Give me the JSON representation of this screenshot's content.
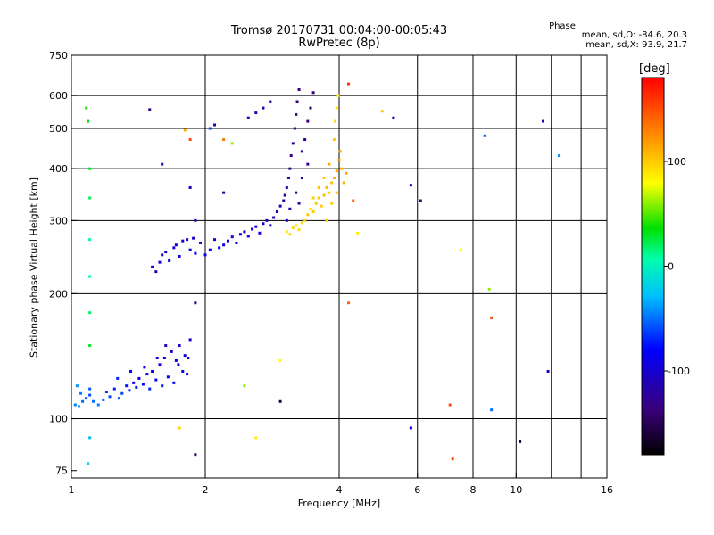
{
  "chart_data": {
    "type": "scatter",
    "title": "Tromsø 20170731 00:04:00-00:05:43",
    "subtitle": "RwPretec (8p)",
    "xlabel": "Frequency [MHz]",
    "ylabel": "Stationary phase Virtual Height [km]",
    "xscale": "log",
    "yscale": "log",
    "xlim": [
      1,
      16
    ],
    "ylim": [
      72,
      750
    ],
    "x_ticks": [
      1,
      2,
      4,
      6,
      8,
      10,
      16
    ],
    "x_tick_labels": [
      "1",
      "2",
      "4",
      "6",
      "8",
      "10",
      "16"
    ],
    "x_grid": [
      2,
      4,
      6,
      8,
      10,
      12,
      14
    ],
    "y_ticks": [
      75,
      100,
      200,
      300,
      400,
      500,
      600,
      750
    ],
    "y_tick_labels": [
      "75",
      "100",
      "200",
      "300",
      "400",
      "500",
      "600",
      "750"
    ],
    "y_grid": [
      100,
      200,
      300,
      400,
      500,
      600
    ],
    "grid": true,
    "phase_label": "Phase",
    "stats_o": "mean, sd,O: -84.6, 20.3",
    "stats_x": "mean, sd,X:  93.9, 21.7",
    "colorbar": {
      "title": "[deg]",
      "range": [
        -180,
        180
      ],
      "ticks": [
        100,
        0,
        -100
      ],
      "tick_labels": [
        "100",
        "0",
        "-100"
      ],
      "colormap": "rainbow (black-purple-blue-cyan-green-yellow-orange-red)"
    },
    "series": [
      {
        "name": "O-mode E-layer trace",
        "points": [
          [
            1.02,
            108,
            -45
          ],
          [
            1.04,
            107,
            -40
          ],
          [
            1.06,
            110,
            -50
          ],
          [
            1.08,
            112,
            -55
          ],
          [
            1.1,
            114,
            -60
          ],
          [
            1.12,
            110,
            -50
          ],
          [
            1.15,
            108,
            -45
          ],
          [
            1.18,
            111,
            -55
          ],
          [
            1.2,
            116,
            -65
          ],
          [
            1.22,
            113,
            -60
          ],
          [
            1.25,
            118,
            -70
          ],
          [
            1.28,
            112,
            -55
          ],
          [
            1.3,
            115,
            -60
          ],
          [
            1.33,
            120,
            -75
          ],
          [
            1.35,
            117,
            -70
          ],
          [
            1.38,
            122,
            -80
          ],
          [
            1.4,
            119,
            -72
          ],
          [
            1.42,
            125,
            -85
          ],
          [
            1.45,
            121,
            -78
          ],
          [
            1.48,
            128,
            -88
          ],
          [
            1.5,
            118,
            -70
          ],
          [
            1.52,
            130,
            -90
          ],
          [
            1.55,
            124,
            -82
          ],
          [
            1.58,
            135,
            -95
          ],
          [
            1.6,
            120,
            -75
          ],
          [
            1.62,
            140,
            -100
          ],
          [
            1.65,
            126,
            -85
          ],
          [
            1.68,
            145,
            -105
          ],
          [
            1.7,
            122,
            -80
          ],
          [
            1.72,
            138,
            -98
          ],
          [
            1.75,
            150,
            -100
          ],
          [
            1.78,
            130,
            -90
          ],
          [
            1.8,
            142,
            -95
          ],
          [
            1.82,
            128,
            -88
          ],
          [
            1.85,
            155,
            -100
          ],
          [
            1.03,
            120,
            -40
          ],
          [
            1.05,
            115,
            -45
          ],
          [
            1.27,
            125,
            -70
          ],
          [
            1.36,
            130,
            -80
          ],
          [
            1.46,
            133,
            -85
          ],
          [
            1.56,
            140,
            -95
          ],
          [
            1.63,
            150,
            -105
          ],
          [
            1.74,
            135,
            -92
          ],
          [
            1.83,
            140,
            -98
          ],
          [
            1.1,
            118,
            -55
          ]
        ]
      },
      {
        "name": "O-mode F-layer trace",
        "points": [
          [
            1.52,
            232,
            -95
          ],
          [
            1.55,
            226,
            -100
          ],
          [
            1.58,
            238,
            -90
          ],
          [
            1.6,
            248,
            -95
          ],
          [
            1.63,
            252,
            -100
          ],
          [
            1.66,
            240,
            -95
          ],
          [
            1.7,
            258,
            -100
          ],
          [
            1.72,
            262,
            -95
          ],
          [
            1.75,
            246,
            -90
          ],
          [
            1.78,
            268,
            -100
          ],
          [
            1.82,
            270,
            -98
          ],
          [
            1.85,
            255,
            -92
          ],
          [
            1.88,
            272,
            -100
          ],
          [
            1.9,
            250,
            -90
          ],
          [
            1.95,
            265,
            -95
          ],
          [
            2.0,
            248,
            -85
          ],
          [
            2.05,
            255,
            -88
          ],
          [
            2.1,
            270,
            -95
          ],
          [
            2.15,
            258,
            -90
          ],
          [
            2.2,
            262,
            -92
          ],
          [
            2.25,
            268,
            -95
          ],
          [
            2.3,
            274,
            -98
          ],
          [
            2.35,
            265,
            -90
          ],
          [
            2.4,
            278,
            -100
          ],
          [
            2.45,
            282,
            -102
          ],
          [
            2.5,
            275,
            -95
          ],
          [
            2.55,
            286,
            -100
          ],
          [
            2.6,
            290,
            -102
          ],
          [
            2.65,
            280,
            -96
          ],
          [
            2.7,
            295,
            -105
          ],
          [
            2.75,
            300,
            -108
          ],
          [
            2.8,
            292,
            -100
          ],
          [
            2.85,
            305,
            -110
          ],
          [
            2.9,
            315,
            -112
          ],
          [
            2.95,
            325,
            -115
          ],
          [
            3.0,
            335,
            -118
          ],
          [
            3.02,
            345,
            -120
          ],
          [
            3.05,
            360,
            -122
          ],
          [
            3.08,
            380,
            -125
          ],
          [
            3.1,
            400,
            -128
          ],
          [
            3.12,
            430,
            -130
          ],
          [
            3.15,
            460,
            -132
          ],
          [
            3.18,
            500,
            -135
          ],
          [
            3.2,
            540,
            -135
          ],
          [
            3.22,
            580,
            -138
          ],
          [
            3.25,
            620,
            -140
          ],
          [
            3.3,
            440,
            -130
          ],
          [
            3.35,
            470,
            -132
          ],
          [
            3.4,
            520,
            -135
          ],
          [
            3.45,
            560,
            -138
          ],
          [
            3.5,
            610,
            -140
          ],
          [
            3.05,
            300,
            -110
          ],
          [
            3.1,
            320,
            -115
          ],
          [
            3.2,
            350,
            -120
          ],
          [
            3.3,
            380,
            -125
          ],
          [
            3.4,
            410,
            -128
          ],
          [
            3.25,
            330,
            -118
          ],
          [
            2.5,
            530,
            -110
          ],
          [
            2.6,
            545,
            -115
          ],
          [
            2.7,
            560,
            -118
          ],
          [
            2.8,
            580,
            -120
          ],
          [
            2.1,
            510,
            -110
          ],
          [
            1.85,
            360,
            -105
          ],
          [
            1.9,
            300,
            -100
          ],
          [
            2.2,
            350,
            -115
          ]
        ]
      },
      {
        "name": "X-mode F-layer trace",
        "points": [
          [
            3.05,
            282,
            90
          ],
          [
            3.1,
            278,
            92
          ],
          [
            3.15,
            288,
            95
          ],
          [
            3.2,
            292,
            90
          ],
          [
            3.25,
            285,
            92
          ],
          [
            3.3,
            296,
            95
          ],
          [
            3.35,
            300,
            98
          ],
          [
            3.4,
            310,
            100
          ],
          [
            3.45,
            320,
            95
          ],
          [
            3.5,
            315,
            100
          ],
          [
            3.55,
            330,
            102
          ],
          [
            3.6,
            340,
            98
          ],
          [
            3.65,
            325,
            100
          ],
          [
            3.7,
            345,
            105
          ],
          [
            3.75,
            360,
            108
          ],
          [
            3.8,
            350,
            100
          ],
          [
            3.85,
            370,
            105
          ],
          [
            3.9,
            380,
            110
          ],
          [
            3.95,
            395,
            112
          ],
          [
            4.0,
            420,
            115
          ],
          [
            4.02,
            440,
            118
          ],
          [
            4.05,
            400,
            110
          ],
          [
            3.9,
            470,
            100
          ],
          [
            3.92,
            520,
            95
          ],
          [
            3.95,
            560,
            90
          ],
          [
            3.98,
            600,
            85
          ],
          [
            3.7,
            380,
            100
          ],
          [
            3.6,
            360,
            105
          ],
          [
            3.5,
            340,
            98
          ],
          [
            3.8,
            410,
            110
          ],
          [
            3.95,
            350,
            108
          ],
          [
            4.1,
            370,
            112
          ],
          [
            4.15,
            390,
            115
          ],
          [
            3.85,
            330,
            100
          ],
          [
            3.75,
            300,
            95
          ]
        ]
      },
      {
        "name": "Scattered noise points",
        "points": [
          [
            1.08,
            560,
            40
          ],
          [
            1.09,
            520,
            35
          ],
          [
            1.1,
            400,
            30
          ],
          [
            1.1,
            340,
            20
          ],
          [
            1.1,
            270,
            10
          ],
          [
            1.1,
            220,
            0
          ],
          [
            1.1,
            180,
            20
          ],
          [
            1.1,
            150,
            30
          ],
          [
            1.1,
            90,
            -30
          ],
          [
            1.09,
            78,
            -20
          ],
          [
            1.5,
            555,
            -130
          ],
          [
            1.6,
            410,
            -120
          ],
          [
            1.8,
            495,
            110
          ],
          [
            1.85,
            470,
            150
          ],
          [
            1.9,
            190,
            -125
          ],
          [
            1.9,
            82,
            -135
          ],
          [
            1.75,
            95,
            95
          ],
          [
            2.05,
            500,
            -60
          ],
          [
            2.2,
            470,
            130
          ],
          [
            2.3,
            460,
            60
          ],
          [
            2.45,
            120,
            60
          ],
          [
            2.6,
            90,
            85
          ],
          [
            2.95,
            110,
            -160
          ],
          [
            2.95,
            138,
            80
          ],
          [
            4.2,
            190,
            140
          ],
          [
            4.3,
            335,
            140
          ],
          [
            4.4,
            280,
            85
          ],
          [
            5.0,
            550,
            100
          ],
          [
            5.3,
            530,
            -100
          ],
          [
            5.8,
            365,
            -110
          ],
          [
            6.1,
            335,
            -140
          ],
          [
            5.8,
            95,
            -90
          ],
          [
            7.1,
            108,
            150
          ],
          [
            7.2,
            80,
            150
          ],
          [
            7.5,
            255,
            80
          ],
          [
            8.5,
            480,
            -50
          ],
          [
            8.7,
            205,
            60
          ],
          [
            8.8,
            175,
            150
          ],
          [
            8.8,
            105,
            -50
          ],
          [
            10.2,
            88,
            -160
          ],
          [
            11.5,
            520,
            -110
          ],
          [
            12.5,
            430,
            -40
          ],
          [
            11.8,
            130,
            -100
          ],
          [
            4.2,
            640,
            160
          ]
        ]
      }
    ]
  }
}
